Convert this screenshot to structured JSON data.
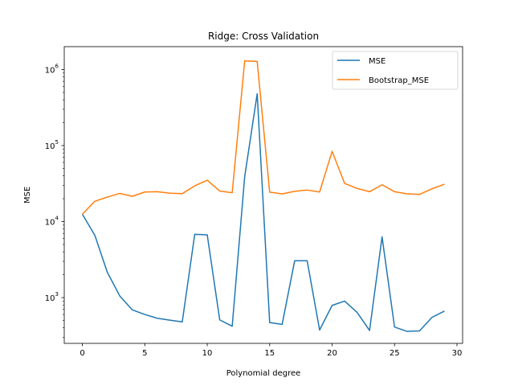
{
  "chart_data": {
    "type": "line",
    "title": "Ridge: Cross Validation",
    "xlabel": "Polynomial degree",
    "ylabel": "MSE",
    "xlim": [
      -1.45,
      30.45
    ],
    "ylim": [
      250,
      2000000
    ],
    "yscale": "log",
    "grid": false,
    "legend_position": "top-right",
    "x_ticks": [
      0,
      5,
      10,
      15,
      20,
      25,
      30
    ],
    "x_tick_labels": [
      "0",
      "5",
      "10",
      "15",
      "20",
      "25",
      "30"
    ],
    "y_ticks": [
      1000,
      10000,
      100000,
      1000000
    ],
    "y_tick_labels": [
      {
        "base": "10",
        "exp": "3"
      },
      {
        "base": "10",
        "exp": "4"
      },
      {
        "base": "10",
        "exp": "5"
      },
      {
        "base": "10",
        "exp": "6"
      }
    ],
    "x": [
      0,
      1,
      2,
      3,
      4,
      5,
      6,
      7,
      8,
      9,
      10,
      11,
      12,
      13,
      14,
      15,
      16,
      17,
      18,
      19,
      20,
      21,
      22,
      23,
      24,
      25,
      26,
      27,
      28,
      29
    ],
    "series": [
      {
        "name": "MSE",
        "color": "#1f77b4",
        "values": [
          12500,
          6600,
          2150,
          1050,
          690,
          600,
          535,
          505,
          480,
          6800,
          6700,
          510,
          420,
          39000,
          480000,
          470,
          445,
          3050,
          3050,
          375,
          790,
          900,
          640,
          370,
          6300,
          410,
          360,
          365,
          550,
          665
        ]
      },
      {
        "name": "Bootstrap_MSE",
        "color": "#ff7f0e",
        "values": [
          12500,
          18500,
          21000,
          23500,
          21500,
          24500,
          24700,
          23600,
          23300,
          29500,
          35000,
          25200,
          24000,
          1300000,
          1280000,
          24400,
          23100,
          25000,
          26000,
          24500,
          84000,
          31800,
          27300,
          24700,
          30500,
          24700,
          23200,
          22800,
          27000,
          31000
        ]
      }
    ]
  }
}
